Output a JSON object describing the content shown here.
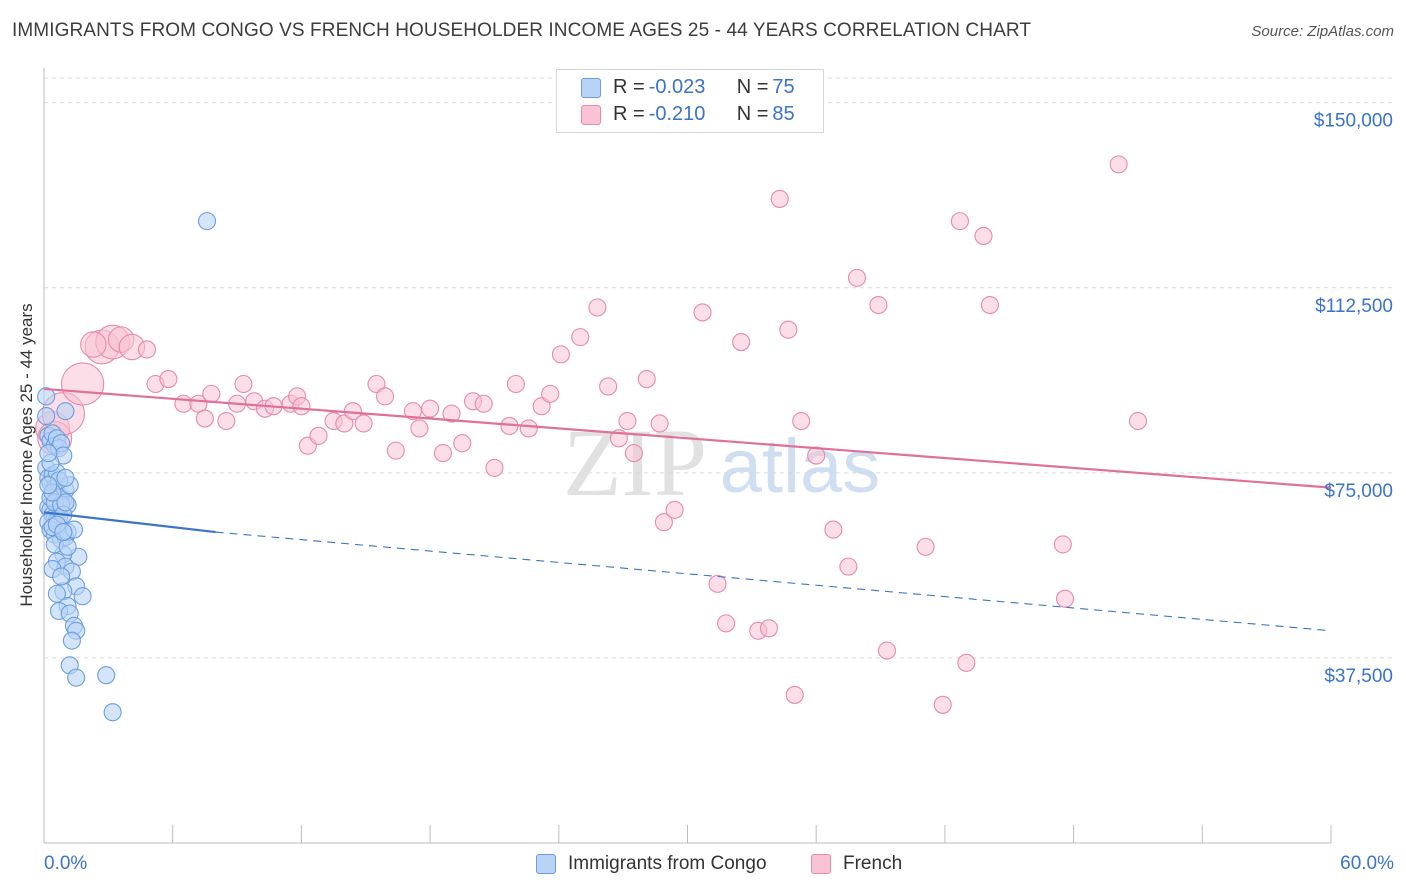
{
  "title": "IMMIGRANTS FROM CONGO VS FRENCH HOUSEHOLDER INCOME AGES 25 - 44 YEARS CORRELATION CHART",
  "source_label": "Source: ",
  "source_value": "ZipAtlas.com",
  "watermark": {
    "zip": "ZIP",
    "atlas": "atlas"
  },
  "legend": {
    "rows": [
      {
        "r_label": "R = ",
        "r_value": "-0.023",
        "n_label": "N = ",
        "n_value": "75"
      },
      {
        "r_label": "R = ",
        "r_value": "-0.210",
        "n_label": "N = ",
        "n_value": "85"
      }
    ]
  },
  "colors": {
    "congo_fill": "#b7d3f5",
    "congo_stroke": "#6d9de0",
    "congo_line": "#3a73c8",
    "french_fill": "#f8c3d4",
    "french_stroke": "#e88aa8",
    "french_line": "#e0709a",
    "axis_text": "#3a73c8",
    "grid": "#d9d9d9"
  },
  "chart_data": {
    "type": "scatter",
    "title": "IMMIGRANTS FROM CONGO VS FRENCH HOUSEHOLDER INCOME AGES 25 - 44 YEARS CORRELATION CHART",
    "xlabel": "",
    "ylabel": "Householder Income Ages 25 - 44 years",
    "xlim": [
      0,
      60
    ],
    "ylim": [
      0,
      155000
    ],
    "x_tick_labels": [
      "0.0%",
      "60.0%"
    ],
    "y_ticks": [
      37500,
      75000,
      112500,
      150000
    ],
    "y_tick_labels": [
      "$37,500",
      "$75,000",
      "$112,500",
      "$150,000"
    ],
    "grid": true,
    "legend_placement": "top-center",
    "series": [
      {
        "name": "Immigrants from Congo",
        "R": -0.023,
        "N": 75,
        "trend": {
          "x0": 0,
          "y0": 67000,
          "x1": 8,
          "y1": 63000,
          "x_dash_end": 60,
          "y_dash_end": 43000
        },
        "points": [
          [
            0.1,
            90500
          ],
          [
            0.1,
            86500
          ],
          [
            0.2,
            82500
          ],
          [
            0.3,
            81500
          ],
          [
            0.4,
            83000
          ],
          [
            0.5,
            80500
          ],
          [
            0.6,
            82000
          ],
          [
            0.7,
            80000
          ],
          [
            0.8,
            81000
          ],
          [
            0.9,
            78500
          ],
          [
            1.0,
            87500
          ],
          [
            0.1,
            76000
          ],
          [
            0.2,
            74000
          ],
          [
            0.3,
            73000
          ],
          [
            0.4,
            74500
          ],
          [
            0.5,
            72000
          ],
          [
            0.6,
            71000
          ],
          [
            0.7,
            70500
          ],
          [
            0.8,
            70000
          ],
          [
            0.9,
            69500
          ],
          [
            1.0,
            71500
          ],
          [
            1.2,
            72500
          ],
          [
            1.1,
            68500
          ],
          [
            0.2,
            68000
          ],
          [
            0.3,
            67500
          ],
          [
            0.4,
            66500
          ],
          [
            0.5,
            66000
          ],
          [
            0.6,
            65500
          ],
          [
            0.7,
            66000
          ],
          [
            0.2,
            65000
          ],
          [
            0.3,
            63500
          ],
          [
            0.5,
            62500
          ],
          [
            0.8,
            61500
          ],
          [
            1.0,
            62000
          ],
          [
            1.1,
            63000
          ],
          [
            1.4,
            63500
          ],
          [
            1.6,
            58000
          ],
          [
            0.9,
            58500
          ],
          [
            0.6,
            57000
          ],
          [
            1.0,
            56000
          ],
          [
            0.4,
            55500
          ],
          [
            1.3,
            55000
          ],
          [
            1.5,
            52000
          ],
          [
            0.9,
            51000
          ],
          [
            0.6,
            50500
          ],
          [
            1.8,
            50000
          ],
          [
            1.1,
            48000
          ],
          [
            0.7,
            47000
          ],
          [
            1.2,
            46500
          ],
          [
            1.4,
            44000
          ],
          [
            1.5,
            43000
          ],
          [
            1.3,
            41000
          ],
          [
            1.2,
            36000
          ],
          [
            1.5,
            33500
          ],
          [
            2.9,
            34000
          ],
          [
            3.2,
            26500
          ],
          [
            7.6,
            126000
          ],
          [
            0.3,
            70000
          ],
          [
            0.5,
            69000
          ],
          [
            0.8,
            68500
          ],
          [
            0.4,
            64000
          ],
          [
            0.9,
            66500
          ],
          [
            1.0,
            69000
          ],
          [
            0.6,
            75000
          ],
          [
            0.3,
            77000
          ],
          [
            0.2,
            79000
          ],
          [
            0.7,
            73500
          ],
          [
            0.5,
            60500
          ],
          [
            1.1,
            60000
          ],
          [
            0.8,
            54000
          ],
          [
            1.0,
            74000
          ],
          [
            0.4,
            71000
          ],
          [
            0.6,
            64500
          ],
          [
            0.9,
            63000
          ],
          [
            0.2,
            72500
          ]
        ]
      },
      {
        "name": "French",
        "R": -0.21,
        "N": 85,
        "trend": {
          "x0": 0,
          "y0": 92000,
          "x1": 60,
          "y1": 72000
        },
        "points": [
          [
            0.4,
            84000,
            3
          ],
          [
            0.5,
            82000,
            3
          ],
          [
            0.9,
            87000,
            4
          ],
          [
            1.8,
            93000,
            4
          ],
          [
            2.7,
            100500,
            3
          ],
          [
            3.2,
            101500,
            3
          ],
          [
            3.6,
            102000,
            2
          ],
          [
            4.1,
            100500,
            2
          ],
          [
            4.8,
            100000,
            1
          ],
          [
            5.2,
            93000,
            1
          ],
          [
            5.8,
            94000,
            1
          ],
          [
            6.5,
            89000,
            1
          ],
          [
            7.2,
            89000,
            1
          ],
          [
            7.5,
            86000,
            1
          ],
          [
            7.8,
            91000,
            1
          ],
          [
            8.5,
            85500,
            1
          ],
          [
            9.0,
            89000,
            1
          ],
          [
            9.3,
            93000,
            1
          ],
          [
            9.8,
            89500,
            1
          ],
          [
            10.3,
            88000,
            1
          ],
          [
            10.7,
            88500,
            1
          ],
          [
            11.5,
            89000,
            1
          ],
          [
            11.8,
            90500,
            1
          ],
          [
            12.0,
            88500,
            1
          ],
          [
            12.3,
            80500,
            1
          ],
          [
            12.8,
            82500,
            1
          ],
          [
            13.5,
            85500,
            1
          ],
          [
            14.0,
            85000,
            1
          ],
          [
            14.4,
            87500,
            1
          ],
          [
            14.9,
            85000,
            1
          ],
          [
            15.5,
            93000,
            1
          ],
          [
            15.9,
            90500,
            1
          ],
          [
            16.4,
            79500,
            1
          ],
          [
            17.2,
            87500,
            1
          ],
          [
            17.5,
            84000,
            1
          ],
          [
            18.0,
            88000,
            1
          ],
          [
            18.6,
            79000,
            1
          ],
          [
            19.0,
            87000,
            1
          ],
          [
            19.5,
            81000,
            1
          ],
          [
            20.0,
            89500,
            1
          ],
          [
            20.5,
            89000,
            1
          ],
          [
            21.0,
            76000,
            1
          ],
          [
            21.7,
            84500,
            1
          ],
          [
            22.0,
            93000,
            1
          ],
          [
            22.6,
            84000,
            1
          ],
          [
            23.2,
            88500,
            1
          ],
          [
            23.6,
            91000,
            1
          ],
          [
            24.1,
            99000,
            1
          ],
          [
            25.0,
            102500,
            1
          ],
          [
            25.8,
            108500,
            1
          ],
          [
            26.3,
            92500,
            1
          ],
          [
            26.8,
            82000,
            1
          ],
          [
            27.2,
            85500,
            1
          ],
          [
            27.5,
            79000,
            1
          ],
          [
            28.1,
            94000,
            1
          ],
          [
            28.7,
            85000,
            1
          ],
          [
            28.9,
            65000,
            1
          ],
          [
            29.4,
            67500,
            1
          ],
          [
            30.7,
            107500,
            1
          ],
          [
            31.4,
            52500,
            1
          ],
          [
            31.8,
            44500,
            1
          ],
          [
            32.5,
            101500,
            1
          ],
          [
            33.3,
            43000,
            1
          ],
          [
            33.8,
            43500,
            1
          ],
          [
            34.3,
            130500,
            1
          ],
          [
            34.7,
            104000,
            1
          ],
          [
            35.0,
            30000,
            1
          ],
          [
            35.3,
            85500,
            1
          ],
          [
            36.0,
            78500,
            1
          ],
          [
            36.8,
            63500,
            1
          ],
          [
            37.5,
            56000,
            1
          ],
          [
            37.9,
            114500,
            1
          ],
          [
            38.9,
            109000,
            1
          ],
          [
            39.3,
            39000,
            1
          ],
          [
            41.1,
            60000,
            1
          ],
          [
            41.9,
            28000,
            1
          ],
          [
            42.7,
            126000,
            1
          ],
          [
            43.0,
            36500,
            1
          ],
          [
            43.8,
            123000,
            1
          ],
          [
            44.1,
            109000,
            1
          ],
          [
            47.5,
            60500,
            1
          ],
          [
            47.6,
            49500,
            1
          ],
          [
            50.1,
            137500,
            1
          ],
          [
            51.0,
            85500,
            1
          ],
          [
            2.3,
            101000,
            2
          ]
        ]
      }
    ]
  },
  "bottom_legend": [
    "Immigrants from Congo",
    "French"
  ]
}
